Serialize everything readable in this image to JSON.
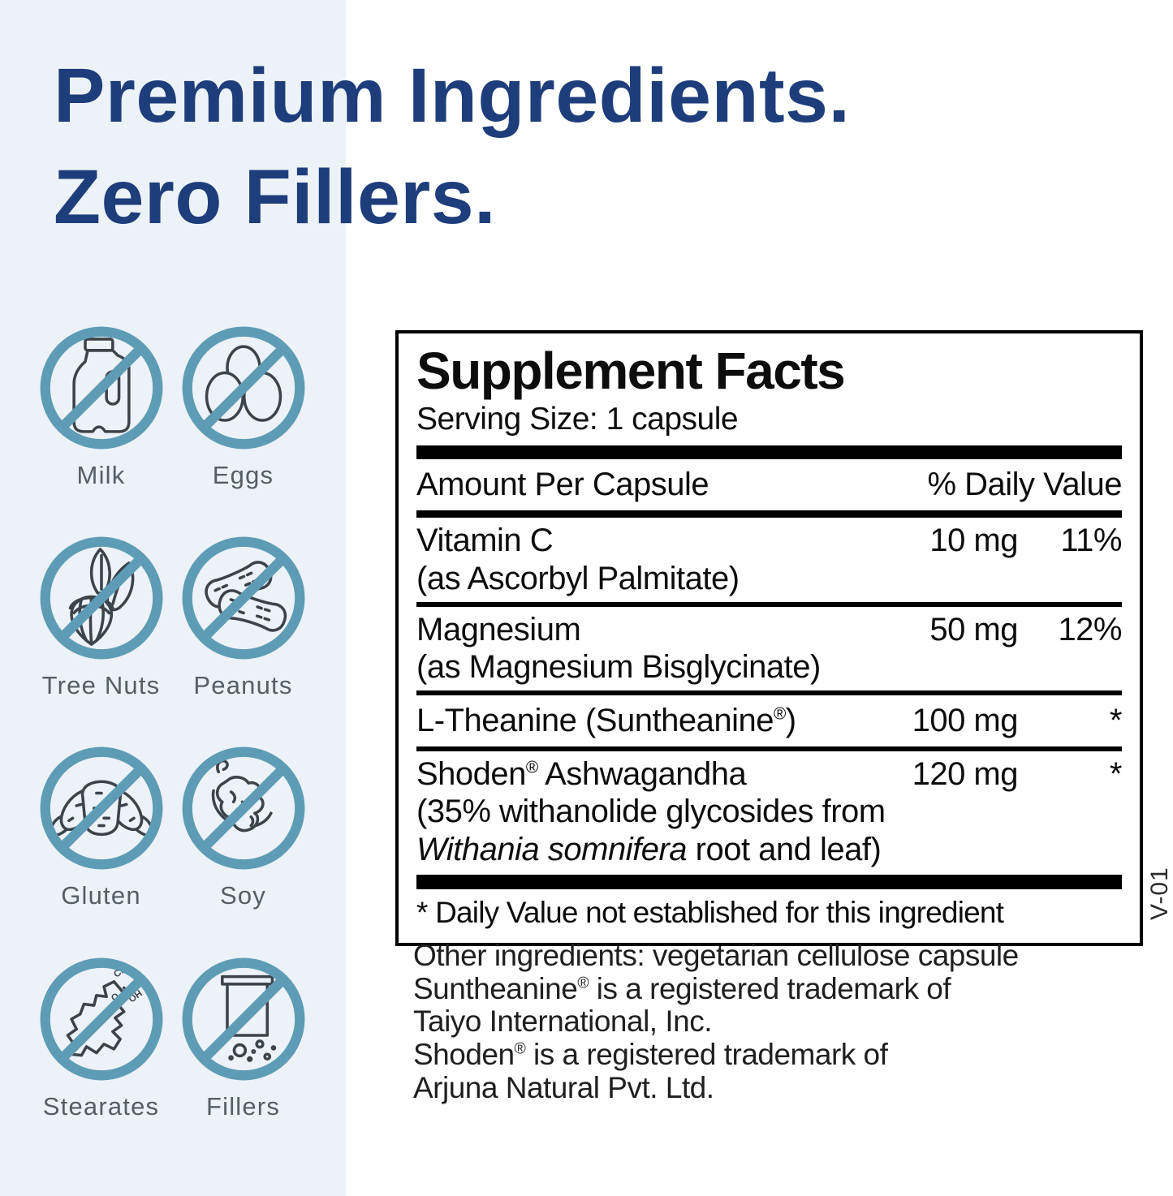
{
  "colors": {
    "headline_navy": "#1e3d7b",
    "icon_teal": "#5e9cb5",
    "band_background": "#ecf2f7",
    "panel_black": "#000000"
  },
  "heading": {
    "line1": "Premium Ingredients.",
    "line2": "Zero Fillers."
  },
  "allergens": {
    "items": [
      {
        "label": "Milk",
        "icon": "milk-jug-icon"
      },
      {
        "label": "Eggs",
        "icon": "eggs-icon"
      },
      {
        "label": "Tree Nuts",
        "icon": "tree-nut-icon"
      },
      {
        "label": "Peanuts",
        "icon": "peanuts-icon"
      },
      {
        "label": "Gluten",
        "icon": "croissant-icon"
      },
      {
        "label": "Soy",
        "icon": "soybean-pod-icon"
      },
      {
        "label": "Stearates",
        "icon": "stearate-molecule-icon"
      },
      {
        "label": "Fillers",
        "icon": "filler-jar-icon"
      }
    ]
  },
  "supplement_facts": {
    "title": "Supplement Facts",
    "serving_size": "Serving Size: 1 capsule",
    "columns": {
      "amount": "Amount Per Capsule",
      "daily_value": "% Daily Value"
    },
    "rows": [
      {
        "name": "Vitamin C",
        "detail": "(as Ascorbyl Palmitate)",
        "amount": "10 mg",
        "daily_value": "11%"
      },
      {
        "name": "Magnesium",
        "detail": "(as Magnesium Bisglycinate)",
        "amount": "50 mg",
        "daily_value": "12%"
      },
      {
        "name": "L-Theanine (Suntheanine®)",
        "amount": "100 mg",
        "daily_value": "*"
      },
      {
        "name": "Shoden® Ashwagandha",
        "detail": "(35% withanolide glycosides from",
        "detail_italic": "Withania somnifera",
        "detail_rest": " root and leaf)",
        "amount": "120 mg",
        "daily_value": "*"
      }
    ],
    "footnote": "* Daily Value not established for this ingredient",
    "side_label": "V-01"
  },
  "notes": {
    "lines": [
      "Other ingredients: vegetarian cellulose capsule",
      "Suntheanine® is a registered trademark of",
      "Taiyo International, Inc.",
      "Shoden® is a registered trademark of",
      "Arjuna Natural Pvt. Ltd."
    ]
  }
}
